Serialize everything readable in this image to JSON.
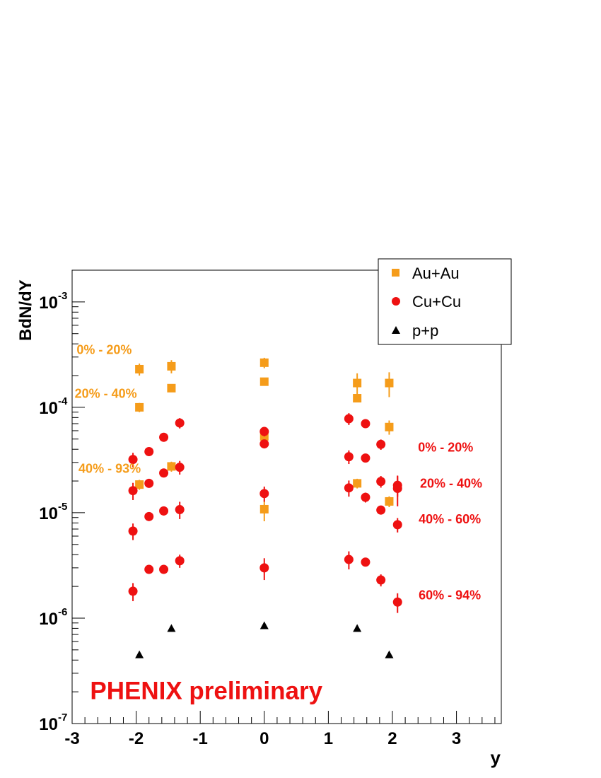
{
  "chart_data": {
    "type": "scatter",
    "title": "",
    "xlabel": "y",
    "ylabel": "BdN/dY",
    "xlim": [
      -3,
      3.7
    ],
    "ylim": [
      1e-07,
      0.002
    ],
    "yscale": "log",
    "grid": false,
    "legend_position": "top-right",
    "x_ticks": [
      {
        "value": -3,
        "label": "-3"
      },
      {
        "value": -2,
        "label": "-2"
      },
      {
        "value": -1,
        "label": "-1"
      },
      {
        "value": 0,
        "label": "0"
      },
      {
        "value": 1,
        "label": "1"
      },
      {
        "value": 2,
        "label": "2"
      },
      {
        "value": 3,
        "label": "3"
      }
    ],
    "y_ticks": [
      {
        "value": 1e-07,
        "base": "10",
        "exp": "-7"
      },
      {
        "value": 1e-06,
        "base": "10",
        "exp": "-6"
      },
      {
        "value": 1e-05,
        "base": "10",
        "exp": "-5"
      },
      {
        "value": 0.0001,
        "base": "10",
        "exp": "-4"
      },
      {
        "value": 0.001,
        "base": "10",
        "exp": "-3"
      }
    ],
    "series": [
      {
        "name": "Au+Au",
        "marker": "square",
        "color": "#f59c1a",
        "points": [
          {
            "x": -1.95,
            "y": 0.00023,
            "err": 3e-05
          },
          {
            "x": -1.45,
            "y": 0.000245,
            "err": 3.5e-05
          },
          {
            "x": 0.0,
            "y": 0.000265,
            "err": 3e-05
          },
          {
            "x": 1.45,
            "y": 0.00017,
            "err": 4e-05
          },
          {
            "x": 1.95,
            "y": 0.00017,
            "err": 4.5e-05
          },
          {
            "x": -1.95,
            "y": 0.0001,
            "err": 1e-05
          },
          {
            "x": -1.45,
            "y": 0.000152,
            "err": 1e-05
          },
          {
            "x": 0.0,
            "y": 0.000175,
            "err": 1e-05
          },
          {
            "x": 1.45,
            "y": 0.000122,
            "err": 1e-05
          },
          {
            "x": 1.95,
            "y": 6.5e-05,
            "err": 1e-05
          },
          {
            "x": -1.95,
            "y": 1.85e-05,
            "err": 2e-06
          },
          {
            "x": -1.45,
            "y": 2.75e-05,
            "err": 3e-06
          },
          {
            "x": 0.0,
            "y": 5.3e-05,
            "err": 8e-06
          },
          {
            "x": 1.45,
            "y": 1.9e-05,
            "err": 2e-06
          },
          {
            "x": 1.95,
            "y": 1.28e-05,
            "err": 1.5e-06
          },
          {
            "x": 0.0,
            "y": 1.08e-05,
            "err": 2.5e-06
          }
        ]
      },
      {
        "name": "Cu+Cu",
        "marker": "circle",
        "color": "#ee1111",
        "points": [
          {
            "x": -2.05,
            "y": 3.2e-05,
            "err": 5e-06
          },
          {
            "x": -1.8,
            "y": 3.8e-05,
            "err": 3e-06
          },
          {
            "x": -1.57,
            "y": 5.2e-05,
            "err": 4e-06
          },
          {
            "x": -1.32,
            "y": 7.1e-05,
            "err": 8e-06
          },
          {
            "x": 0.0,
            "y": 5.9e-05,
            "err": 6e-06
          },
          {
            "x": 1.32,
            "y": 7.8e-05,
            "err": 1e-05
          },
          {
            "x": 1.58,
            "y": 7e-05,
            "err": 5e-06
          },
          {
            "x": 1.82,
            "y": 4.45e-05,
            "err": 5e-06
          },
          {
            "x": 0.0,
            "y": 4.5e-05,
            "err": 4e-06
          },
          {
            "x": 1.32,
            "y": 3.4e-05,
            "err": 5e-06
          },
          {
            "x": 1.58,
            "y": 3.3e-05,
            "err": 3e-06
          },
          {
            "x": -2.05,
            "y": 1.62e-05,
            "err": 3e-06
          },
          {
            "x": -1.8,
            "y": 1.9e-05,
            "err": 1.5e-06
          },
          {
            "x": -1.57,
            "y": 2.38e-05,
            "err": 2e-06
          },
          {
            "x": -1.32,
            "y": 2.7e-05,
            "err": 4e-06
          },
          {
            "x": 0.0,
            "y": 1.52e-05,
            "err": 2.5e-06
          },
          {
            "x": 1.32,
            "y": 1.72e-05,
            "err": 3e-06
          },
          {
            "x": 1.58,
            "y": 1.4e-05,
            "err": 1.5e-06
          },
          {
            "x": 1.82,
            "y": 1.98e-05,
            "err": 2.5e-06
          },
          {
            "x": 2.08,
            "y": 1.7e-05,
            "err": 5.5e-06
          },
          {
            "x": 2.08,
            "y": 1.82e-05,
            "err": 4e-06
          },
          {
            "x": -2.05,
            "y": 6.7e-06,
            "err": 1.2e-06
          },
          {
            "x": -1.8,
            "y": 9.2e-06,
            "err": 8e-07
          },
          {
            "x": -1.57,
            "y": 1.04e-05,
            "err": 1e-06
          },
          {
            "x": -1.32,
            "y": 1.07e-05,
            "err": 2e-06
          },
          {
            "x": 1.82,
            "y": 1.06e-05,
            "err": 1e-06
          },
          {
            "x": 2.08,
            "y": 7.7e-06,
            "err": 1.2e-06
          },
          {
            "x": -2.05,
            "y": 1.8e-06,
            "err": 3.5e-07
          },
          {
            "x": -1.8,
            "y": 2.9e-06,
            "err": 2e-07
          },
          {
            "x": -1.57,
            "y": 2.9e-06,
            "err": 2e-07
          },
          {
            "x": -1.32,
            "y": 3.5e-06,
            "err": 5e-07
          },
          {
            "x": 0.0,
            "y": 3e-06,
            "err": 7e-07
          },
          {
            "x": 1.32,
            "y": 3.6e-06,
            "err": 7e-07
          },
          {
            "x": 1.58,
            "y": 3.4e-06,
            "err": 3e-07
          },
          {
            "x": 1.82,
            "y": 2.3e-06,
            "err": 3e-07
          },
          {
            "x": 2.08,
            "y": 1.42e-06,
            "err": 3e-07
          }
        ]
      },
      {
        "name": "p+p",
        "marker": "triangle",
        "color": "#000000",
        "points": [
          {
            "x": -1.95,
            "y": 4.5e-07,
            "err": 0
          },
          {
            "x": -1.45,
            "y": 8e-07,
            "err": 0
          },
          {
            "x": 0.0,
            "y": 8.5e-07,
            "err": 8e-09
          },
          {
            "x": 1.45,
            "y": 8e-07,
            "err": 0
          },
          {
            "x": 1.95,
            "y": 4.5e-07,
            "err": 0
          }
        ]
      }
    ],
    "annotations": {
      "auau": [
        {
          "text": "0% - 20%",
          "x": -2.93,
          "y": 0.00032
        },
        {
          "text": "20% - 40%",
          "x": -2.96,
          "y": 0.000123
        },
        {
          "text": "40% - 93%",
          "x": -2.9,
          "y": 2.4e-05
        }
      ],
      "cucu": [
        {
          "text": "0% - 20%",
          "x": 2.4,
          "y": 3.8e-05
        },
        {
          "text": "20% - 40%",
          "x": 2.43,
          "y": 1.73e-05
        },
        {
          "text": "40% - 60%",
          "x": 2.41,
          "y": 7.9e-06
        },
        {
          "text": "60% - 94%",
          "x": 2.41,
          "y": 1.5e-06
        }
      ],
      "watermark": {
        "text": "PHENIX preliminary",
        "x": -2.72,
        "y": 1.7e-07
      }
    }
  }
}
